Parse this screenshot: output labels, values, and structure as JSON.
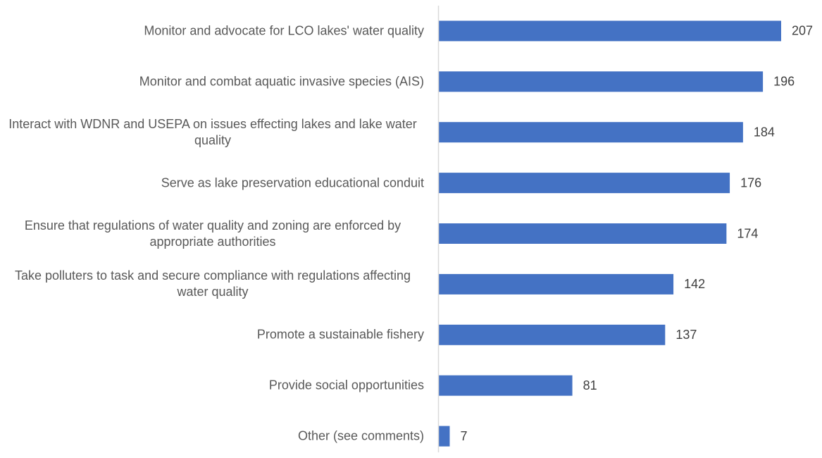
{
  "chart_data": {
    "type": "bar",
    "orientation": "horizontal",
    "categories": [
      "Monitor and advocate for LCO lakes' water quality",
      "Monitor and combat aquatic invasive species (AIS)",
      "Interact with WDNR and USEPA on issues effecting lakes and lake water quality",
      "Serve as lake preservation educational conduit",
      "Ensure that regulations of water quality and zoning are enforced by appropriate authorities",
      "Take polluters to task and secure compliance with regulations affecting water quality",
      "Promote a sustainable fishery",
      "Provide social opportunities",
      "Other (see comments)"
    ],
    "values": [
      207,
      196,
      184,
      176,
      174,
      142,
      137,
      81,
      7
    ],
    "color": "#4472c4"
  }
}
